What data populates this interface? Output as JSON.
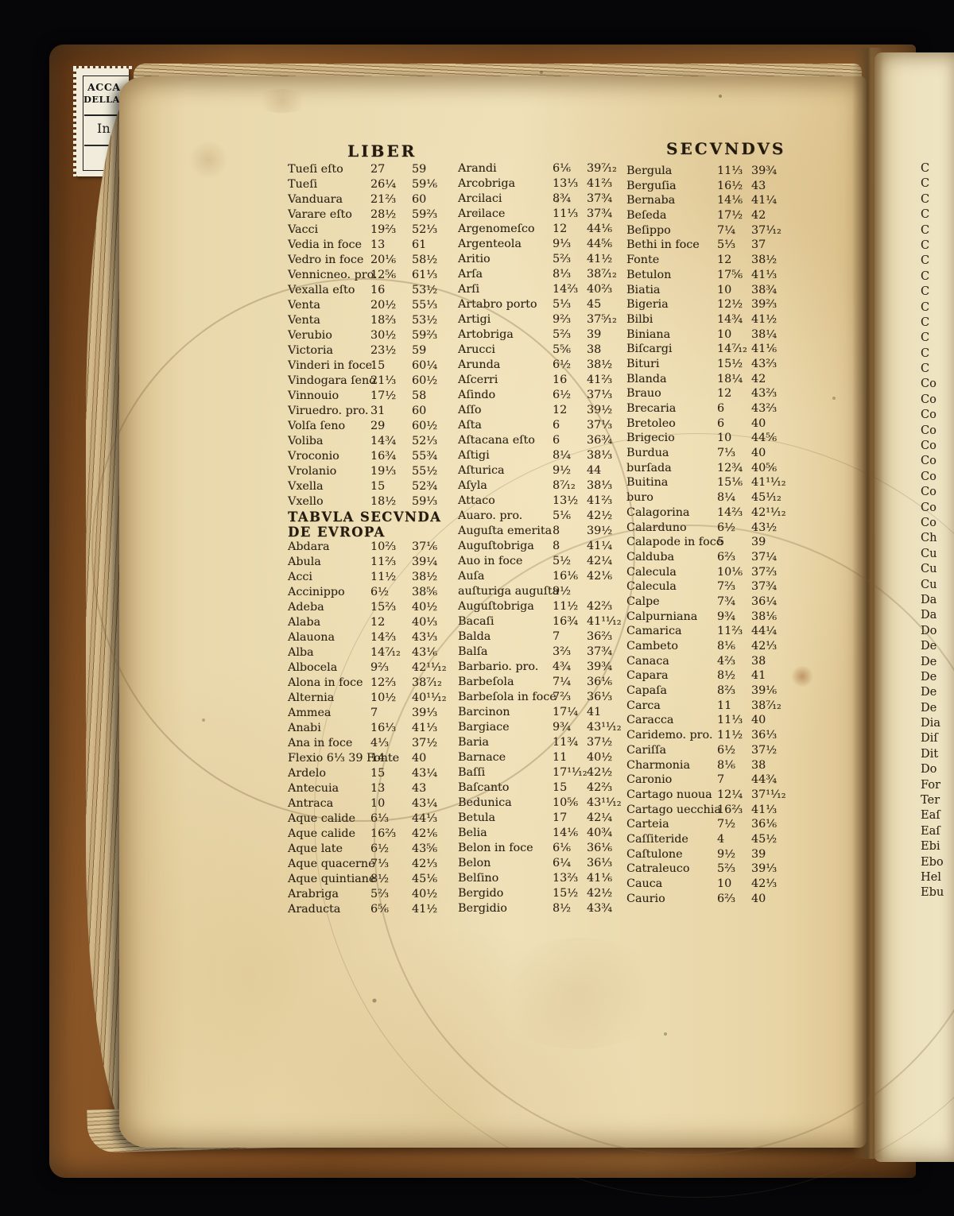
{
  "book": {
    "header_left": "LIBER",
    "header_right": "SECVNDVS",
    "section_title_line1": "TABVLA SECVNDA",
    "section_title_line2": "DE EVROPA",
    "bookplate": {
      "line1": "ACCA",
      "line2": "DELLA",
      "line3": "In"
    }
  },
  "colors": {
    "page_cream": "#ecdcb2",
    "leather_brown": "#7c4a20",
    "ink": "#2b2214",
    "label_white": "#f1ecdb",
    "background": "#060608"
  },
  "gazetteer": {
    "left_top": [
      [
        "Tueſi eſto",
        "27",
        "59"
      ],
      [
        "Tueſi",
        "26¼",
        "59⅙"
      ],
      [
        "Vanduara",
        "21⅔",
        "60"
      ],
      [
        "Varare eſto",
        "28½",
        "59⅔"
      ],
      [
        "Vacci",
        "19⅔",
        "52⅓"
      ],
      [
        "Vedia in foce",
        "13",
        "61"
      ],
      [
        "Vedro in foce",
        "20⅙",
        "58½"
      ],
      [
        "Vennicneo. pro.",
        "12⅚",
        "61⅓"
      ],
      [
        "Vexalla eſto",
        "16",
        "53½"
      ],
      [
        "Venta",
        "20½",
        "55⅓"
      ],
      [
        "Venta",
        "18⅔",
        "53½"
      ],
      [
        "Verubio",
        "30½",
        "59⅔"
      ],
      [
        "Victoria",
        "23½",
        "59"
      ],
      [
        "Vinderi in foce",
        "15",
        "60¼"
      ],
      [
        "Vindogara ſeno",
        "21⅓",
        "60½"
      ],
      [
        "Vinnouio",
        "17½",
        "58"
      ],
      [
        "Viruedro. pro.",
        "31",
        "60"
      ],
      [
        "Volſa ſeno",
        "29",
        "60½"
      ],
      [
        "Voliba",
        "14¾",
        "52⅓"
      ],
      [
        "Vroconio",
        "16¾",
        "55¾"
      ],
      [
        "Vrolanio",
        "19⅓",
        "55½"
      ],
      [
        "Vxella",
        "15",
        "52¾"
      ],
      [
        "Vxello",
        "18½",
        "59⅓"
      ]
    ],
    "left_bottom": [
      [
        "Abdara",
        "10⅔",
        "37⅙"
      ],
      [
        "Abula",
        "11⅔",
        "39¼"
      ],
      [
        "Acci",
        "11½",
        "38½"
      ],
      [
        "Accinippo",
        "6½",
        "38⅚"
      ],
      [
        "Adeba",
        "15⅔",
        "40½"
      ],
      [
        "Alaba",
        "12",
        "40⅓"
      ],
      [
        "Alauona",
        "14⅔",
        "43⅓"
      ],
      [
        "Alba",
        "14⁷⁄₁₂",
        "43⅙"
      ],
      [
        "Albocela",
        "9⅔",
        "42¹¹⁄₁₂"
      ],
      [
        "Alona in foce",
        "12⅔",
        "38⁷⁄₁₂"
      ],
      [
        "Alternia",
        "10½",
        "40¹¹⁄₁₂"
      ],
      [
        "Ammea",
        "7",
        "39⅓"
      ],
      [
        "Anabi",
        "16⅓",
        "41⅓"
      ],
      [
        "Ana in foce",
        "4⅓",
        "37½"
      ],
      [
        "Flexio  6⅓ 39  Fonte",
        "14",
        "40"
      ],
      [
        "Ardelo",
        "15",
        "43¼"
      ],
      [
        "Antecuia",
        "13",
        "43"
      ],
      [
        "Antraca",
        "10",
        "43¼"
      ],
      [
        "Aque calide",
        "6⅓",
        "44⅓"
      ],
      [
        "Aque calide",
        "16⅔",
        "42⅙"
      ],
      [
        "Aque late",
        "6½",
        "43⅚"
      ],
      [
        "Aque quacerne",
        "7⅓",
        "42⅓"
      ],
      [
        "Aque quintiane",
        "8½",
        "45⅙"
      ],
      [
        "Arabriga",
        "5⅔",
        "40½"
      ],
      [
        "Araducta",
        "6⅚",
        "41½"
      ]
    ],
    "middle": [
      [
        "Arandi",
        "6⅙",
        "39⁷⁄₁₂"
      ],
      [
        "Arcobriga",
        "13⅓",
        "41⅔"
      ],
      [
        "Arcilaci",
        "8¾",
        "37¾"
      ],
      [
        "Arcilace",
        "11⅓",
        "37¾"
      ],
      [
        "Argenomeſco",
        "12",
        "44⅙"
      ],
      [
        "Argenteola",
        "9⅓",
        "44⅚"
      ],
      [
        "Aritio",
        "5⅔",
        "41½"
      ],
      [
        "Arſa",
        "8⅓",
        "38⁷⁄₁₂"
      ],
      [
        "Arſi",
        "14⅔",
        "40⅔"
      ],
      [
        "Artabro porto",
        "5⅓",
        "45"
      ],
      [
        "Artigi",
        "9⅔",
        "37⁵⁄₁₂"
      ],
      [
        "Artobriga",
        "5⅔",
        "39"
      ],
      [
        "Arucci",
        "5⅚",
        "38"
      ],
      [
        "Arunda",
        "6½",
        "38½"
      ],
      [
        "Aſcerri",
        "16",
        "41⅔"
      ],
      [
        "Aſindo",
        "6½",
        "37⅓"
      ],
      [
        "Aſſo",
        "12",
        "39½"
      ],
      [
        "Aſta",
        "6",
        "37⅓"
      ],
      [
        "Aſtacana eſto",
        "6",
        "36¾"
      ],
      [
        "Aſtigi",
        "8¼",
        "38⅓"
      ],
      [
        "Aſturica",
        "9½",
        "44"
      ],
      [
        "Aſyla",
        "8⁷⁄₁₂",
        "38⅓"
      ],
      [
        "Attaco",
        "13½",
        "41⅔"
      ],
      [
        "Auaro. pro.",
        "5⅙",
        "42½"
      ],
      [
        "Auguſta emerita",
        "8",
        "39½"
      ],
      [
        "Auguſtobriga",
        "8",
        "41¼"
      ],
      [
        "Auo in foce",
        "5½",
        "42¼"
      ],
      [
        "Auſa",
        "16⅙",
        "42⅙"
      ],
      [
        "auſturiga auguſta",
        "9½",
        ""
      ],
      [
        "Auguſtobriga",
        "11½",
        "42⅔"
      ],
      [
        "Bacaſi",
        "16¾",
        "41¹¹⁄₁₂"
      ],
      [
        "Balda",
        "7",
        "36⅔"
      ],
      [
        "Balſa",
        "3⅔",
        "37¾"
      ],
      [
        "Barbario. pro.",
        "4¾",
        "39¾"
      ],
      [
        "Barbeſola",
        "7¼",
        "36⅙"
      ],
      [
        "Barbeſola in foce",
        "7⅔",
        "36⅓"
      ],
      [
        "Barcinon",
        "17¼",
        "41"
      ],
      [
        "Bargiace",
        "9¾",
        "43¹¹⁄₁₂"
      ],
      [
        "Baria",
        "11¾",
        "37½"
      ],
      [
        "Barnace",
        "11",
        "40½"
      ],
      [
        "Baſſi",
        "17¹¹⁄₁₂",
        "42½"
      ],
      [
        "Baſcanto",
        "15",
        "42⅔"
      ],
      [
        "Bedunica",
        "10⅚",
        "43¹¹⁄₁₂"
      ],
      [
        "Betula",
        "17",
        "42¼"
      ],
      [
        "Belia",
        "14⅙",
        "40¾"
      ],
      [
        "Belon in foce",
        "6⅙",
        "36⅙"
      ],
      [
        "Belon",
        "6¼",
        "36⅓"
      ],
      [
        "Belſino",
        "13⅔",
        "41⅙"
      ],
      [
        "Bergido",
        "15½",
        "42½"
      ],
      [
        "Bergidio",
        "8½",
        "43¾"
      ]
    ],
    "right": [
      [
        "Bergula",
        "11⅓",
        "39¾"
      ],
      [
        "Berguſia",
        "16½",
        "43"
      ],
      [
        "Bernaba",
        "14⅙",
        "41¼"
      ],
      [
        "Beſeda",
        "17½",
        "42"
      ],
      [
        "Beſippo",
        "7¼",
        "37¹⁄₁₂"
      ],
      [
        "Bethi in foce",
        "5⅓",
        "37"
      ],
      [
        "Fonte",
        "12",
        "38½"
      ],
      [
        "Betulon",
        "17⅚",
        "41⅓"
      ],
      [
        "Biatia",
        "10",
        "38¾"
      ],
      [
        "Bigeria",
        "12½",
        "39⅔"
      ],
      [
        "Bilbi",
        "14¾",
        "41½"
      ],
      [
        "Biniana",
        "10",
        "38¼"
      ],
      [
        "Biſcargi",
        "14⁷⁄₁₂",
        "41⅙"
      ],
      [
        "Bituri",
        "15½",
        "43⅔"
      ],
      [
        "Blanda",
        "18¼",
        "42"
      ],
      [
        "Brauo",
        "12",
        "43⅔"
      ],
      [
        "Brecaria",
        "6",
        "43⅔"
      ],
      [
        "Bretoleo",
        "6",
        "40"
      ],
      [
        "Brigecio",
        "10",
        "44⅚"
      ],
      [
        "Burdua",
        "7⅓",
        "40"
      ],
      [
        "burſada",
        "12¾",
        "40⅚"
      ],
      [
        "Buitina",
        "15⅙",
        "41¹¹⁄₁₂"
      ],
      [
        "buro",
        "8¼",
        "45¹⁄₁₂"
      ],
      [
        "Calagorina",
        "14⅔",
        "42¹¹⁄₁₂"
      ],
      [
        "Calarduno",
        "6½",
        "43½"
      ],
      [
        "Calapode in foce",
        "5",
        "39"
      ],
      [
        "Calduba",
        "6⅔",
        "37¼"
      ],
      [
        "Calecula",
        "10⅙",
        "37⅔"
      ],
      [
        "Calecula",
        "7⅔",
        "37¾"
      ],
      [
        "Calpe",
        "7¾",
        "36¼"
      ],
      [
        "Calpurniana",
        "9¾",
        "38⅙"
      ],
      [
        "Camarica",
        "11⅔",
        "44¼"
      ],
      [
        "Cambeto",
        "8⅙",
        "42⅓"
      ],
      [
        "Canaca",
        "4⅔",
        "38"
      ],
      [
        "Capara",
        "8½",
        "41"
      ],
      [
        "Capaſa",
        "8⅔",
        "39⅙"
      ],
      [
        "Carca",
        "11",
        "38⁷⁄₁₂"
      ],
      [
        "Caracca",
        "11⅓",
        "40"
      ],
      [
        "Caridemo. pro.",
        "11½",
        "36⅓"
      ],
      [
        "Cariſſa",
        "6½",
        "37½"
      ],
      [
        "Charmonia",
        "8⅙",
        "38"
      ],
      [
        "Caronio",
        "7",
        "44¾"
      ],
      [
        "Cartago nuoua",
        "12¼",
        "37¹¹⁄₁₂"
      ],
      [
        "Cartago uecchia",
        "16⅔",
        "41⅓"
      ],
      [
        "Carteia",
        "7½",
        "36⅙"
      ],
      [
        "Caſſiteride",
        "4",
        "45½"
      ],
      [
        "Caſtulone",
        "9½",
        "39"
      ],
      [
        "Catraleuco",
        "5⅔",
        "39⅓"
      ],
      [
        "Cauca",
        "10",
        "42⅓"
      ],
      [
        "Caurio",
        "6⅔",
        "40"
      ]
    ]
  },
  "edge_letters": [
    "C",
    "C",
    "C",
    "C",
    "C",
    "C",
    "C",
    "C",
    "C",
    "C",
    "C",
    "C",
    "C",
    "C",
    "Co",
    "Co",
    "Co",
    "Co",
    "Co",
    "Co",
    "Co",
    "Co",
    "Co",
    "Co",
    "Ch",
    "Cu",
    "Cu",
    "Cu",
    "Da",
    "Da",
    "Do",
    "De",
    "De",
    "De",
    "De",
    "De",
    "Dia",
    "Diſ",
    "Dit",
    "Do",
    "For",
    "Ter",
    "Eaſ",
    "Eaſ",
    "Ebi",
    "Ebo",
    "Hel",
    "Ebu"
  ]
}
